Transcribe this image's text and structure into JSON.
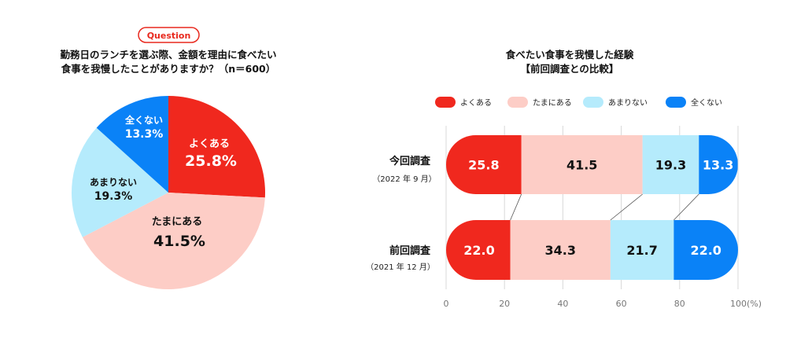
{
  "chart_data": [
    {
      "type": "pie",
      "badge": "Question",
      "title_lines": [
        "勤務日のランチを選ぶ際、金額を理由に食べたい",
        "食事を我慢したことがありますか？（n＝600）"
      ],
      "slices": [
        {
          "label": "よくある",
          "value": 25.8,
          "value_text": "25.8%",
          "color": "#f0281e",
          "text_color": "#ffffff"
        },
        {
          "label": "たまにある",
          "value": 41.5,
          "value_text": "41.5%",
          "color": "#fdcdc6",
          "text_color": "#111111"
        },
        {
          "label": "あまりない",
          "value": 19.3,
          "value_text": "19.3%",
          "color": "#b5ebfc",
          "text_color": "#111111"
        },
        {
          "label": "全くない",
          "value": 13.3,
          "value_text": "13.3%",
          "color": "#0a82f7",
          "text_color": "#ffffff"
        }
      ]
    },
    {
      "type": "bar",
      "orientation": "horizontal-stacked",
      "title_lines": [
        "食べたい食事を我慢した経験",
        "【前回調査との比較】"
      ],
      "legend": [
        {
          "label": "よくある",
          "color": "#f0281e"
        },
        {
          "label": "たまにある",
          "color": "#fdcdc6"
        },
        {
          "label": "あまりない",
          "color": "#b5ebfc"
        },
        {
          "label": "全くない",
          "color": "#0a82f7"
        }
      ],
      "categories": [
        {
          "label": "今回調査",
          "sublabel": "（2022 年 9 月）"
        },
        {
          "label": "前回調査",
          "sublabel": "（2021 年 12 月）"
        }
      ],
      "series": [
        {
          "name": "よくある",
          "values": [
            25.8,
            22.0
          ],
          "labels": [
            "25.8",
            "22.0"
          ],
          "text_color": "#ffffff"
        },
        {
          "name": "たまにある",
          "values": [
            41.5,
            34.3
          ],
          "labels": [
            "41.5",
            "34.3"
          ],
          "text_color": "#111111"
        },
        {
          "name": "あまりない",
          "values": [
            19.3,
            21.7
          ],
          "labels": [
            "19.3",
            "21.7"
          ],
          "text_color": "#111111"
        },
        {
          "name": "全くない",
          "values": [
            13.3,
            22.0
          ],
          "labels": [
            "13.3",
            "22.0"
          ],
          "text_color": "#ffffff"
        }
      ],
      "xlim": [
        0,
        100
      ],
      "xticks": [
        "0",
        "20",
        "40",
        "60",
        "80",
        "100(%)"
      ]
    }
  ]
}
